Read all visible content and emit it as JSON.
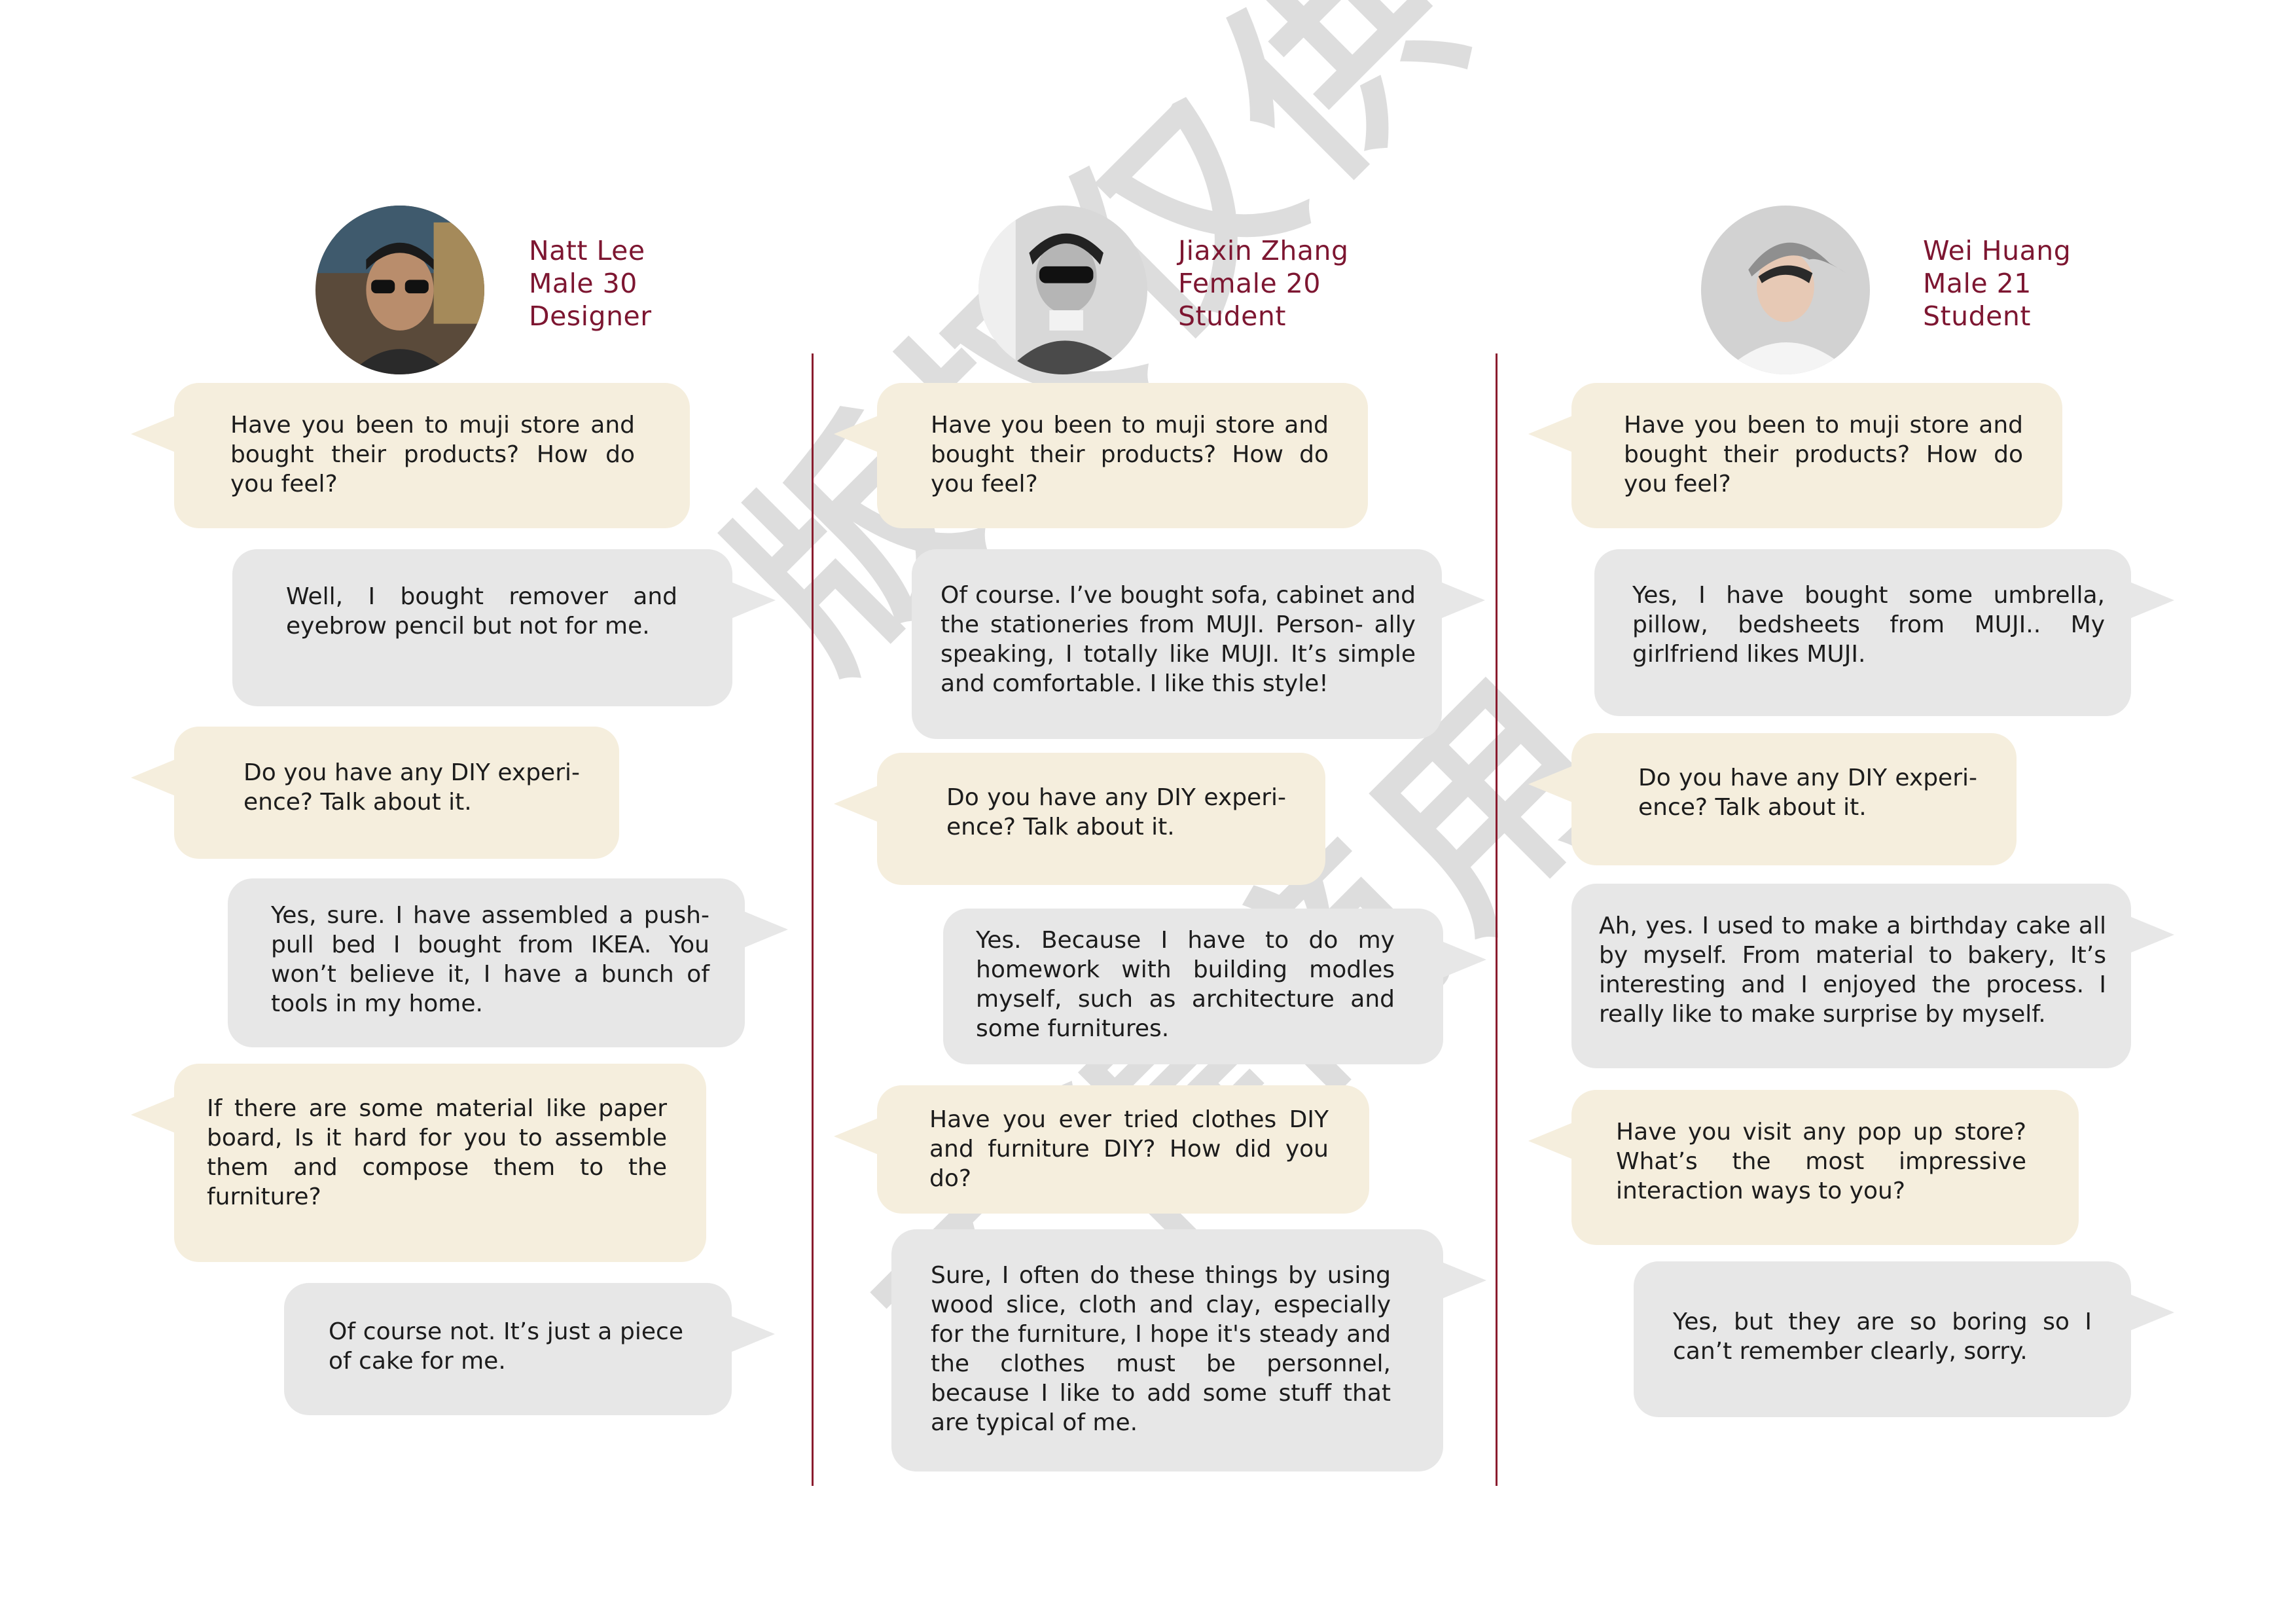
{
  "colors": {
    "accent": "#7d1631",
    "divider": "#8a1c2e",
    "question_bubble": "#f5eedd",
    "answer_bubble": "#e7e7e7"
  },
  "watermark": {
    "line1": "版权仅供",
    "line2": "不得商用"
  },
  "columns": [
    {
      "avatar_icon": "person-photo-icon",
      "name": "Natt  Lee",
      "gender_age": "Male 30",
      "occupation": "Designer",
      "bubbles": [
        "Have you been to muji store and bought their products? How do you feel?",
        "Well, I bought remover and eyebrow pencil but not for me.",
        "Do you have any DIY experi- ence? Talk about it.",
        "Yes, sure. I have assembled a push-pull bed I bought from IKEA. You won’t believe it, I have a bunch of tools in my home.",
        "If there are some material like paper board, Is it hard for you to assemble them and compose them to the furniture?",
        "Of course not. It’s just a piece of cake for me."
      ]
    },
    {
      "avatar_icon": "person-photo-icon",
      "name": "Jiaxin Zhang",
      "gender_age": "Female 20",
      "occupation": "Student",
      "bubbles": [
        "Have you been to muji store and bought their products? How do you feel?",
        "Of course. I’ve bought sofa, cabinet and the stationeries from MUJI. Person- ally speaking, I totally like MUJI. It’s simple and comfortable. I like this style!",
        "Do you have any DIY experi- ence? Talk about it.",
        "Yes. Because I have to do my homework with building modles myself, such as architecture and some furnitures.",
        "Have you ever tried clothes DIY and furniture DIY? How did you do?",
        "Sure, I often do these things by using wood slice, cloth and clay, especially for the furniture, I hope it's steady and the clothes must be personnel, because I like to add some stuff that are typical of me."
      ]
    },
    {
      "avatar_icon": "person-photo-icon",
      "name": "Wei Huang",
      "gender_age": "Male 21",
      "occupation": "Student",
      "bubbles": [
        "Have you been to muji store and bought their products? How do you feel?",
        "Yes, I have bought some umbrella, pillow, bedsheets from MUJI.. My girlfriend likes MUJI.",
        "Do you have any DIY experi- ence? Talk about it.",
        "Ah, yes. I used to make a birthday cake all by myself. From material to bakery, It’s interesting and I enjoyed the process. I really like to make surprise by myself.",
        "Have you visit any pop up store? What’s the most impressive interaction ways to you?",
        "Yes, but they are so boring so I can’t remember clearly, sorry."
      ]
    }
  ]
}
